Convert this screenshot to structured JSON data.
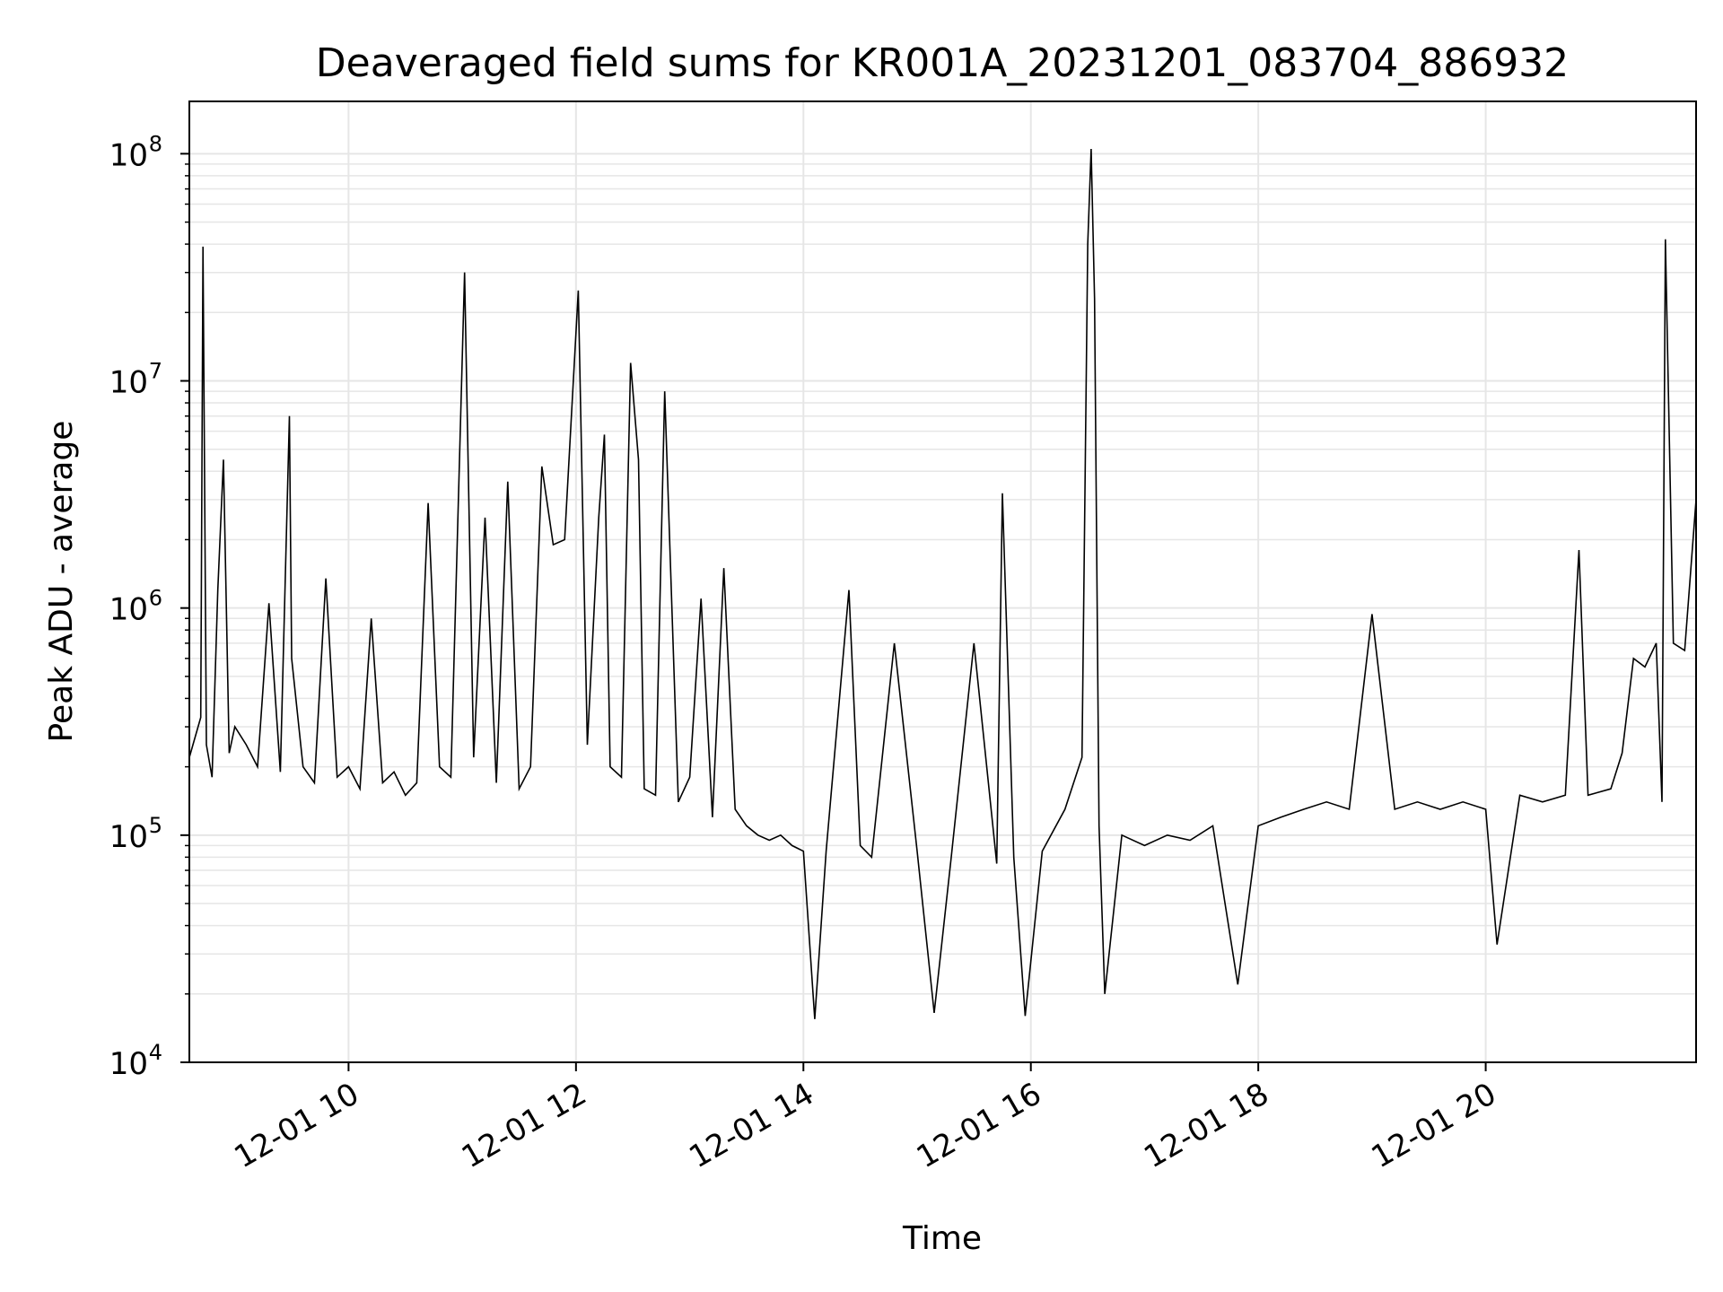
{
  "chart_data": {
    "type": "line",
    "title": "Deaveraged field sums for KR001A_20231201_083704_886932",
    "xlabel": "Time",
    "ylabel": "Peak ADU - average",
    "x_tick_labels": [
      "12-01 10",
      "12-01 12",
      "12-01 14",
      "12-01 16",
      "12-01 18",
      "12-01 20"
    ],
    "x_tick_hours": [
      10,
      12,
      14,
      16,
      18,
      20
    ],
    "xlim_hours": [
      8.6,
      21.85
    ],
    "y_scale": "log",
    "y_tick_labels": [
      {
        "base": "10",
        "exp": "4"
      },
      {
        "base": "10",
        "exp": "5"
      },
      {
        "base": "10",
        "exp": "6"
      },
      {
        "base": "10",
        "exp": "7"
      },
      {
        "base": "10",
        "exp": "8"
      }
    ],
    "ylim": [
      10000,
      170000000
    ],
    "grid": true,
    "line_color": "#000000",
    "grid_color": "#e6e6e6",
    "series": [
      {
        "points": [
          [
            8.6,
            220000
          ],
          [
            8.7,
            330000
          ],
          [
            8.72,
            39000000
          ],
          [
            8.75,
            250000
          ],
          [
            8.8,
            180000
          ],
          [
            8.85,
            1200000
          ],
          [
            8.9,
            4500000
          ],
          [
            8.95,
            230000
          ],
          [
            9.0,
            300000
          ],
          [
            9.1,
            250000
          ],
          [
            9.2,
            200000
          ],
          [
            9.3,
            1050000
          ],
          [
            9.4,
            190000
          ],
          [
            9.48,
            7000000
          ],
          [
            9.5,
            600000
          ],
          [
            9.6,
            200000
          ],
          [
            9.7,
            170000
          ],
          [
            9.8,
            1350000
          ],
          [
            9.9,
            180000
          ],
          [
            10.0,
            200000
          ],
          [
            10.1,
            160000
          ],
          [
            10.2,
            900000
          ],
          [
            10.3,
            170000
          ],
          [
            10.4,
            190000
          ],
          [
            10.5,
            150000
          ],
          [
            10.6,
            170000
          ],
          [
            10.7,
            2900000
          ],
          [
            10.8,
            200000
          ],
          [
            10.9,
            180000
          ],
          [
            11.02,
            30000000
          ],
          [
            11.1,
            220000
          ],
          [
            11.2,
            2500000
          ],
          [
            11.3,
            170000
          ],
          [
            11.4,
            3600000
          ],
          [
            11.5,
            160000
          ],
          [
            11.6,
            200000
          ],
          [
            11.7,
            4200000
          ],
          [
            11.8,
            1900000
          ],
          [
            11.9,
            2000000
          ],
          [
            12.02,
            25000000
          ],
          [
            12.1,
            250000
          ],
          [
            12.2,
            2500000
          ],
          [
            12.25,
            5800000
          ],
          [
            12.3,
            200000
          ],
          [
            12.4,
            180000
          ],
          [
            12.48,
            12000000
          ],
          [
            12.55,
            4500000
          ],
          [
            12.6,
            160000
          ],
          [
            12.7,
            150000
          ],
          [
            12.78,
            9000000
          ],
          [
            12.9,
            140000
          ],
          [
            13.0,
            180000
          ],
          [
            13.1,
            1100000
          ],
          [
            13.2,
            120000
          ],
          [
            13.3,
            1500000
          ],
          [
            13.4,
            130000
          ],
          [
            13.5,
            110000
          ],
          [
            13.6,
            100000
          ],
          [
            13.7,
            95000
          ],
          [
            13.8,
            100000
          ],
          [
            13.9,
            90000
          ],
          [
            14.0,
            85000
          ],
          [
            14.1,
            15500
          ],
          [
            14.2,
            85000
          ],
          [
            14.4,
            1200000
          ],
          [
            14.5,
            90000
          ],
          [
            14.6,
            80000
          ],
          [
            14.8,
            700000
          ],
          [
            15.0,
            85000
          ],
          [
            15.15,
            16500
          ],
          [
            15.3,
            80000
          ],
          [
            15.5,
            700000
          ],
          [
            15.7,
            75000
          ],
          [
            15.75,
            3200000
          ],
          [
            15.85,
            80000
          ],
          [
            15.95,
            16000
          ],
          [
            16.1,
            85000
          ],
          [
            16.3,
            130000
          ],
          [
            16.45,
            220000
          ],
          [
            16.5,
            40000000
          ],
          [
            16.53,
            105000000
          ],
          [
            16.56,
            23000000
          ],
          [
            16.6,
            110000
          ],
          [
            16.65,
            20000
          ],
          [
            16.8,
            100000
          ],
          [
            17.0,
            90000
          ],
          [
            17.2,
            100000
          ],
          [
            17.4,
            95000
          ],
          [
            17.6,
            110000
          ],
          [
            17.82,
            22000
          ],
          [
            18.0,
            110000
          ],
          [
            18.2,
            120000
          ],
          [
            18.4,
            130000
          ],
          [
            18.6,
            140000
          ],
          [
            18.8,
            130000
          ],
          [
            19.0,
            940000
          ],
          [
            19.2,
            130000
          ],
          [
            19.4,
            140000
          ],
          [
            19.6,
            130000
          ],
          [
            19.8,
            140000
          ],
          [
            20.0,
            130000
          ],
          [
            20.1,
            33000
          ],
          [
            20.3,
            150000
          ],
          [
            20.5,
            140000
          ],
          [
            20.7,
            150000
          ],
          [
            20.82,
            1800000
          ],
          [
            20.9,
            150000
          ],
          [
            21.1,
            160000
          ],
          [
            21.2,
            230000
          ],
          [
            21.3,
            600000
          ],
          [
            21.4,
            550000
          ],
          [
            21.5,
            700000
          ],
          [
            21.55,
            140000
          ],
          [
            21.58,
            42000000
          ],
          [
            21.65,
            700000
          ],
          [
            21.75,
            650000
          ],
          [
            21.85,
            3000000
          ]
        ]
      }
    ]
  }
}
